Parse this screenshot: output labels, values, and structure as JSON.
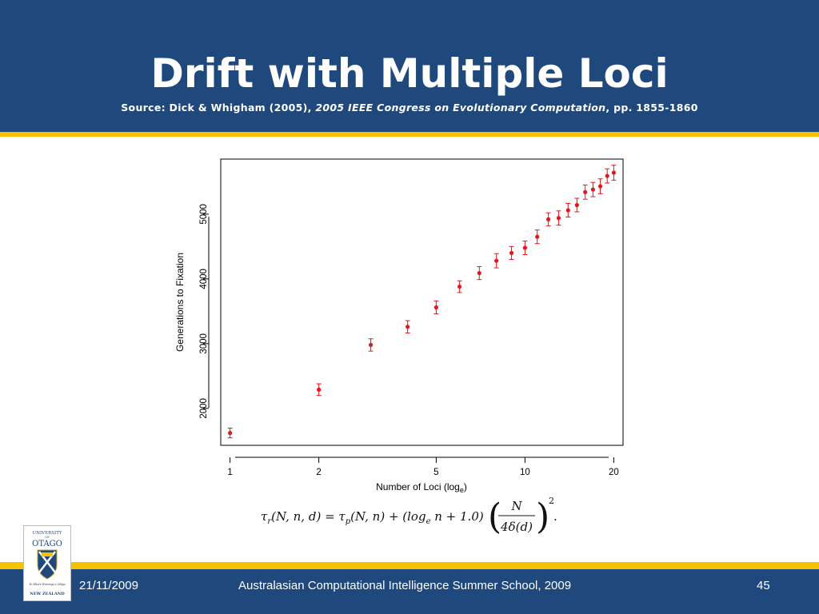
{
  "slide": {
    "title": "Drift with Multiple Loci",
    "source_prefix": "Source: Dick & Whigham (2005), ",
    "source_venue": "2005 IEEE Congress on Evolutionary Computation",
    "source_suffix": ", pp. 1855-1860"
  },
  "formula": {
    "lhs": "τ",
    "lhs_sub": "r",
    "lhs_args": "(N, n, d) = τ",
    "rhs_sub": "p",
    "rhs_args": "(N, n) + (log",
    "log_sub": "e",
    "log_tail": " n + 1.0)",
    "numerator": "N",
    "denominator": "4δ(d)",
    "exponent": "2",
    "end": "."
  },
  "logo": {
    "line1": "UNIVERSITY",
    "line2": "OF",
    "line3": "OTAGO",
    "motto": "Te Whare Wānanga o Otāgo",
    "country": "NEW ZEALAND"
  },
  "footer": {
    "date": "21/11/2009",
    "event": "Australasian Computational Intelligence Summer School, 2009",
    "page": "45"
  },
  "chart_data": {
    "type": "scatter",
    "title": "",
    "xlabel": "Number of Loci (log",
    "xlabel_sub": "e",
    "xlabel_end": ")",
    "ylabel": "Generations to Fixation",
    "x_scale": "log",
    "xlim": [
      0.93,
      21.5
    ],
    "ylim": [
      1430,
      5850
    ],
    "x_ticks": [
      1,
      2,
      5,
      10,
      20
    ],
    "x_tick_labels": [
      "1",
      "2",
      "5",
      "10",
      "20"
    ],
    "y_ticks": [
      2000,
      3000,
      4000,
      5000
    ],
    "y_tick_labels": [
      "2000",
      "3000",
      "4000",
      "5000"
    ],
    "grid": false,
    "point_color": "#e8141c",
    "error_bar_color": "#e8141c",
    "series": [
      {
        "x": [
          1,
          2,
          3,
          4,
          5,
          6,
          7,
          8,
          9,
          10,
          11,
          12,
          13,
          14,
          15,
          16,
          17,
          18,
          19,
          20
        ],
        "y": [
          1620,
          2290,
          2980,
          3260,
          3560,
          3880,
          4090,
          4280,
          4400,
          4480,
          4650,
          4920,
          4940,
          5060,
          5140,
          5340,
          5380,
          5430,
          5590,
          5640
        ],
        "err": [
          75,
          90,
          95,
          95,
          100,
          90,
          100,
          110,
          100,
          105,
          105,
          100,
          110,
          105,
          105,
          110,
          110,
          115,
          110,
          115
        ]
      }
    ]
  }
}
